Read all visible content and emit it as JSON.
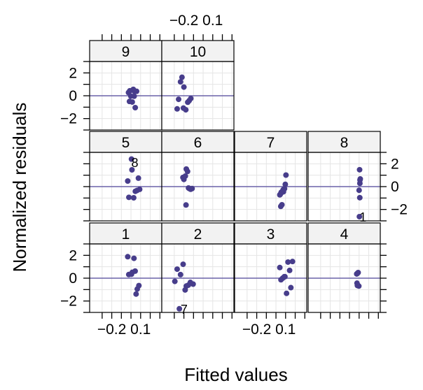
{
  "chart_data": {
    "type": "scatter",
    "xlabel": "Fitted values",
    "ylabel": "Normalized residuals",
    "xlim": [
      -0.43,
      0.32
    ],
    "ylim": [
      -3.0,
      3.0
    ],
    "x_ticks": [
      -0.3,
      -0.2,
      -0.1,
      0.0,
      0.1,
      0.2,
      0.3
    ],
    "x_tick_labels": [
      {
        "value": -0.2,
        "label": "−0.2"
      },
      {
        "value": 0.1,
        "label": "0.1"
      }
    ],
    "y_ticks": [
      -3,
      -2,
      -1,
      0,
      1,
      2,
      3
    ],
    "y_tick_labels": [
      {
        "value": -2,
        "label": "−2"
      },
      {
        "value": 0,
        "label": "0"
      },
      {
        "value": 2,
        "label": "2"
      }
    ],
    "reference_line": 0,
    "grid": true,
    "point_color": "#473d8b",
    "line_color": "#6a62a8",
    "strip_color": "#f2f2f2",
    "panels": [
      {
        "strip": "1",
        "points": [
          [
            -0.023,
            0.32
          ],
          [
            -0.034,
            1.88
          ],
          [
            0.013,
            0.51
          ],
          [
            0.031,
            1.74
          ],
          [
            0.043,
            0.62
          ],
          [
            0.005,
            0.35
          ],
          [
            0.065,
            -0.95
          ],
          [
            0.053,
            -1.39
          ],
          [
            0.082,
            -0.65
          ]
        ],
        "labels": []
      },
      {
        "strip": "2",
        "points": [
          [
            -0.294,
            -0.28
          ],
          [
            -0.27,
            0.79
          ],
          [
            -0.235,
            0.31
          ],
          [
            -0.208,
            1.22
          ],
          [
            -0.187,
            -1.03
          ],
          [
            -0.154,
            -0.61
          ],
          [
            -0.133,
            -0.37
          ],
          [
            -0.104,
            -0.52
          ],
          [
            -0.175,
            -0.69
          ],
          [
            -0.247,
            -2.68
          ]
        ],
        "labels": [
          {
            "text": "7",
            "x": -0.198,
            "y": -2.68
          }
        ]
      },
      {
        "strip": "3",
        "points": [
          [
            0.04,
            0.93
          ],
          [
            0.052,
            -0.14
          ],
          [
            0.07,
            0.0
          ],
          [
            0.087,
            0.13
          ],
          [
            0.093,
            0.13
          ],
          [
            0.11,
            -1.33
          ],
          [
            0.125,
            1.41
          ],
          [
            0.142,
            0.68
          ],
          [
            0.155,
            -0.83
          ],
          [
            0.172,
            1.46
          ]
        ],
        "labels": []
      },
      {
        "strip": "4",
        "points": [
          [
            0.075,
            0.37
          ],
          [
            0.082,
            0.42
          ],
          [
            0.09,
            0.49
          ],
          [
            0.078,
            -0.44
          ],
          [
            0.083,
            -0.58
          ],
          [
            0.097,
            -0.69
          ],
          [
            0.082,
            -0.64
          ]
        ],
        "labels": []
      },
      {
        "strip": "5",
        "points": [
          [
            -0.034,
            0.49
          ],
          [
            -0.022,
            -0.94
          ],
          [
            0.005,
            2.41
          ],
          [
            0.01,
            1.47
          ],
          [
            0.028,
            -0.98
          ],
          [
            0.045,
            -0.41
          ],
          [
            0.062,
            -0.34
          ],
          [
            0.077,
            0.74
          ],
          [
            0.09,
            -0.24
          ]
        ],
        "labels": [
          {
            "text": "8",
            "x": 0.04,
            "y": 2.13
          }
        ]
      },
      {
        "strip": "6",
        "points": [
          [
            -0.21,
            0.8
          ],
          [
            -0.2,
            0.63
          ],
          [
            -0.185,
            0.92
          ],
          [
            -0.175,
            1.54
          ],
          [
            -0.162,
            1.33
          ],
          [
            -0.152,
            -0.12
          ],
          [
            -0.143,
            -0.17
          ],
          [
            -0.13,
            -0.23
          ],
          [
            -0.115,
            -0.17
          ],
          [
            -0.178,
            -1.61
          ]
        ],
        "labels": []
      },
      {
        "strip": "7",
        "points": [
          [
            0.04,
            -0.72
          ],
          [
            0.045,
            -0.68
          ],
          [
            0.054,
            -0.5
          ],
          [
            0.062,
            -1.59
          ],
          [
            0.067,
            -0.48
          ],
          [
            0.078,
            -0.45
          ],
          [
            0.082,
            -0.22
          ],
          [
            0.089,
            -0.18
          ],
          [
            0.097,
            0.2
          ],
          [
            0.104,
            1.01
          ],
          [
            0.05,
            -1.73
          ],
          [
            0.074,
            -0.28
          ]
        ],
        "labels": []
      },
      {
        "strip": "8",
        "points": [
          [
            0.105,
            1.48
          ],
          [
            0.112,
            0.67
          ],
          [
            0.108,
            0.29
          ],
          [
            0.1,
            -0.32
          ],
          [
            0.107,
            -0.97
          ],
          [
            0.103,
            -2.63
          ],
          [
            0.109,
            0.58
          ]
        ],
        "labels": [
          {
            "text": "1",
            "x": 0.14,
            "y": -2.63
          }
        ]
      },
      {
        "strip": "9",
        "points": [
          [
            -0.026,
            0.28
          ],
          [
            -0.012,
            0.44
          ],
          [
            -0.002,
            -0.03
          ],
          [
            0.013,
            -0.55
          ],
          [
            0.024,
            0.56
          ],
          [
            0.033,
            -0.04
          ],
          [
            0.044,
            -1.04
          ],
          [
            0.058,
            0.39
          ],
          [
            0.033,
            0.41
          ],
          [
            -0.016,
            -0.5
          ]
        ],
        "labels": []
      },
      {
        "strip": "10",
        "points": [
          [
            -0.27,
            -1.15
          ],
          [
            -0.255,
            -0.31
          ],
          [
            -0.235,
            1.22
          ],
          [
            -0.22,
            1.62
          ],
          [
            -0.2,
            0.76
          ],
          [
            -0.205,
            -1.08
          ],
          [
            -0.18,
            -1.23
          ],
          [
            -0.16,
            -0.57
          ],
          [
            -0.145,
            -0.43
          ],
          [
            -0.128,
            -0.24
          ]
        ],
        "labels": []
      }
    ]
  }
}
